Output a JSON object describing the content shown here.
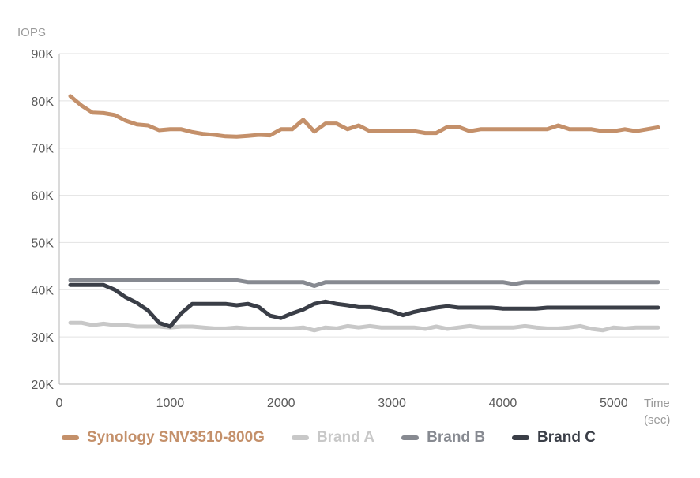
{
  "chart_data": {
    "type": "line",
    "ylabel": "IOPS",
    "xlabel_line1": "Time",
    "xlabel_line2": "(sec)",
    "xlim": [
      0,
      5500
    ],
    "ylim": [
      20000,
      90000
    ],
    "x_ticks": [
      "0",
      "1000",
      "2000",
      "3000",
      "4000",
      "5000"
    ],
    "y_ticks": [
      "20K",
      "30K",
      "40K",
      "50K",
      "60K",
      "70K",
      "80K",
      "90K"
    ],
    "grid": "horizontal",
    "legend_position": "bottom",
    "series": [
      {
        "name": "Synology SNV3510-800G",
        "color": "#c4906a",
        "x": [
          100,
          200,
          300,
          400,
          500,
          600,
          700,
          800,
          900,
          1000,
          1100,
          1200,
          1300,
          1400,
          1500,
          1600,
          1700,
          1800,
          1900,
          2000,
          2100,
          2200,
          2300,
          2400,
          2500,
          2600,
          2700,
          2800,
          2900,
          3000,
          3100,
          3200,
          3300,
          3400,
          3500,
          3600,
          3700,
          3800,
          3900,
          4000,
          4100,
          4200,
          4300,
          4400,
          4500,
          4600,
          4700,
          4800,
          4900,
          5000,
          5100,
          5200,
          5300,
          5400
        ],
        "y": [
          81000,
          79000,
          77500,
          77400,
          77000,
          75800,
          75000,
          74800,
          73800,
          74000,
          74000,
          73400,
          73000,
          72800,
          72500,
          72400,
          72600,
          72800,
          72700,
          74000,
          74000,
          76000,
          73500,
          75200,
          75200,
          74000,
          74800,
          73600,
          73600,
          73600,
          73600,
          73600,
          73200,
          73200,
          74500,
          74500,
          73600,
          74000,
          74000,
          74000,
          74000,
          74000,
          74000,
          74000,
          74800,
          74000,
          74000,
          74000,
          73600,
          73600,
          74000,
          73600,
          74000,
          74400
        ]
      },
      {
        "name": "Brand A",
        "color": "#c8c8c8",
        "x": [
          100,
          200,
          300,
          400,
          500,
          600,
          700,
          800,
          900,
          1000,
          1100,
          1200,
          1300,
          1400,
          1500,
          1600,
          1700,
          1800,
          1900,
          2000,
          2100,
          2200,
          2300,
          2400,
          2500,
          2600,
          2700,
          2800,
          2900,
          3000,
          3100,
          3200,
          3300,
          3400,
          3500,
          3600,
          3700,
          3800,
          3900,
          4000,
          4100,
          4200,
          4300,
          4400,
          4500,
          4600,
          4700,
          4800,
          4900,
          5000,
          5100,
          5200,
          5300,
          5400
        ],
        "y": [
          33000,
          33000,
          32500,
          32800,
          32500,
          32500,
          32200,
          32200,
          32200,
          32000,
          32200,
          32200,
          32000,
          31800,
          31800,
          32000,
          31800,
          31800,
          31800,
          31800,
          31800,
          32000,
          31400,
          32000,
          31800,
          32300,
          32000,
          32300,
          32000,
          32000,
          32000,
          32000,
          31700,
          32200,
          31700,
          32000,
          32300,
          32000,
          32000,
          32000,
          32000,
          32300,
          32000,
          31800,
          31800,
          32000,
          32300,
          31700,
          31400,
          32000,
          31800,
          32000,
          32000,
          32000
        ]
      },
      {
        "name": "Brand B",
        "color": "#878a91",
        "x": [
          100,
          500,
          1000,
          1500,
          1600,
          1700,
          2200,
          2300,
          2400,
          2800,
          3200,
          3600,
          4000,
          4100,
          4200,
          4500,
          5000,
          5400
        ],
        "y": [
          42000,
          42000,
          42000,
          42000,
          42000,
          41600,
          41600,
          40800,
          41600,
          41600,
          41600,
          41600,
          41600,
          41200,
          41600,
          41600,
          41600,
          41600
        ]
      },
      {
        "name": "Brand C",
        "color": "#3a3e47",
        "x": [
          100,
          200,
          300,
          400,
          500,
          600,
          700,
          800,
          900,
          1000,
          1100,
          1200,
          1300,
          1400,
          1500,
          1600,
          1700,
          1800,
          1900,
          2000,
          2100,
          2200,
          2300,
          2400,
          2500,
          2600,
          2700,
          2800,
          2900,
          3000,
          3100,
          3200,
          3300,
          3400,
          3500,
          3600,
          3700,
          3800,
          3900,
          4000,
          4100,
          4200,
          4300,
          4400,
          4500,
          4600,
          4700,
          4800,
          4900,
          5000,
          5100,
          5200,
          5300,
          5400
        ],
        "y": [
          41000,
          41000,
          41000,
          41000,
          40000,
          38400,
          37200,
          35600,
          33000,
          32200,
          35000,
          37000,
          37000,
          37000,
          37000,
          36700,
          37000,
          36300,
          34500,
          34000,
          35000,
          35800,
          37000,
          37500,
          37000,
          36700,
          36300,
          36300,
          35900,
          35400,
          34600,
          35300,
          35800,
          36200,
          36500,
          36200,
          36200,
          36200,
          36200,
          36000,
          36000,
          36000,
          36000,
          36200,
          36200,
          36200,
          36200,
          36200,
          36200,
          36200,
          36200,
          36200,
          36200,
          36200
        ]
      }
    ]
  }
}
